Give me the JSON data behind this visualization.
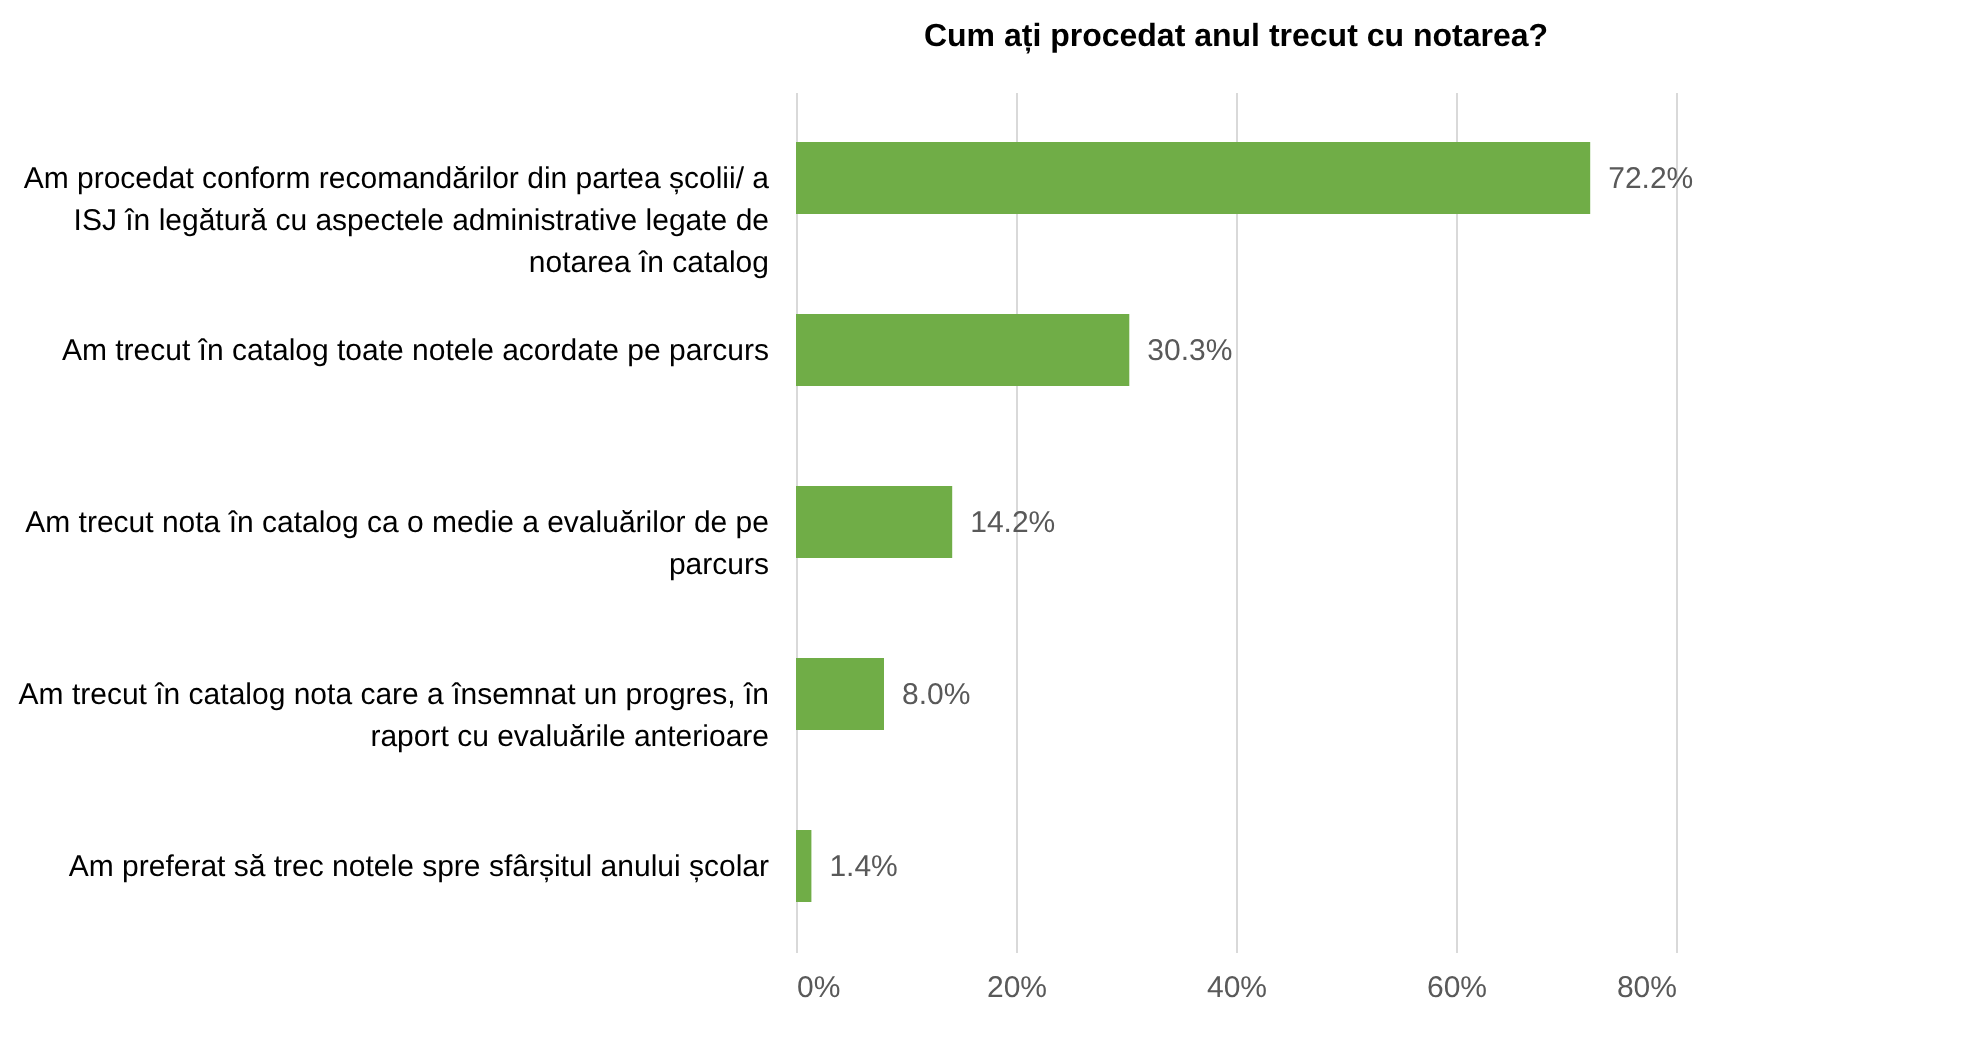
{
  "chart_data": {
    "type": "bar",
    "orientation": "horizontal",
    "title": "Cum ați procedat anul trecut cu notarea?",
    "categories": [
      "Am procedat conform recomandărilor din partea școlii/ a ISJ în legătură cu aspectele administrative legate de notarea în catalog",
      "Am trecut în catalog toate notele acordate pe parcurs",
      "Am trecut nota în catalog ca o medie a evaluărilor de pe parcurs",
      "Am trecut în catalog nota care a însemnat un progres, în raport cu evaluările anterioare",
      "Am preferat să trec notele spre sfârșitul anului școlar"
    ],
    "values": [
      72.2,
      30.3,
      14.2,
      8.0,
      1.4
    ],
    "value_labels": [
      "72.2%",
      "30.3%",
      "14.2%",
      "8.0%",
      "1.4%"
    ],
    "color": "#70ad47",
    "xlim": [
      0,
      80
    ],
    "xticks": [
      {
        "value": 0,
        "label": "0%"
      },
      {
        "value": 20,
        "label": "20%"
      },
      {
        "value": 40,
        "label": "40%"
      },
      {
        "value": 60,
        "label": "60%"
      },
      {
        "value": 80,
        "label": "80%"
      }
    ],
    "grid": "x"
  }
}
